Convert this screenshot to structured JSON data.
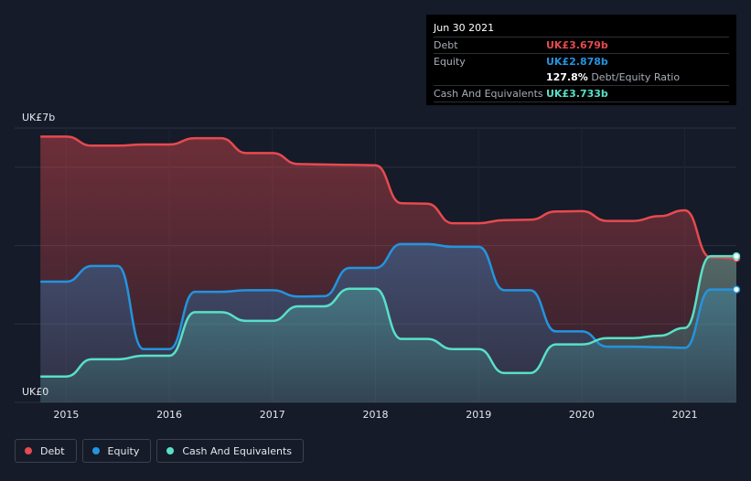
{
  "chart_data": {
    "type": "area",
    "ylim": [
      0,
      7
    ],
    "y_tick_labels": [
      "UK£7b",
      "UK£0"
    ],
    "x_tick_labels": [
      "2015",
      "2016",
      "2017",
      "2018",
      "2019",
      "2020",
      "2021"
    ],
    "x_ticks": [
      2015,
      2016,
      2017,
      2018,
      2019,
      2020,
      2021
    ],
    "xlim": [
      2014.5,
      2021.5
    ],
    "grid": true,
    "colors": {
      "debt": "#e64a4f",
      "equity": "#2394df",
      "cash": "#58e0c8"
    },
    "series": [
      {
        "name": "Debt",
        "key": "debt",
        "x": [
          2014.75,
          2015.0,
          2015.25,
          2015.5,
          2015.75,
          2016.0,
          2016.25,
          2016.5,
          2016.75,
          2017.0,
          2017.25,
          2017.5,
          2017.75,
          2018.0,
          2018.25,
          2018.5,
          2018.75,
          2019.0,
          2019.25,
          2019.5,
          2019.75,
          2020.0,
          2020.25,
          2020.5,
          2020.75,
          2021.0,
          2021.25,
          2021.5
        ],
        "values": [
          6.78,
          6.78,
          6.55,
          6.55,
          6.58,
          6.58,
          6.74,
          6.74,
          6.36,
          6.36,
          6.08,
          6.07,
          6.06,
          6.05,
          5.08,
          5.07,
          4.57,
          4.57,
          4.65,
          4.66,
          4.87,
          4.88,
          4.63,
          4.63,
          4.75,
          4.9,
          3.7,
          3.68
        ]
      },
      {
        "name": "Equity",
        "key": "equity",
        "x": [
          2014.75,
          2015.0,
          2015.25,
          2015.5,
          2015.75,
          2016.0,
          2016.25,
          2016.5,
          2016.75,
          2017.0,
          2017.25,
          2017.5,
          2017.75,
          2018.0,
          2018.25,
          2018.5,
          2018.75,
          2019.0,
          2019.25,
          2019.5,
          2019.75,
          2020.0,
          2020.25,
          2020.5,
          2020.75,
          2021.0,
          2021.25,
          2021.5
        ],
        "values": [
          3.08,
          3.08,
          3.48,
          3.48,
          1.36,
          1.36,
          2.82,
          2.82,
          2.86,
          2.86,
          2.7,
          2.71,
          3.43,
          3.43,
          4.04,
          4.04,
          3.97,
          3.97,
          2.86,
          2.86,
          1.81,
          1.81,
          1.42,
          1.42,
          1.41,
          1.39,
          2.88,
          2.88
        ]
      },
      {
        "name": "Cash And Equivalents",
        "key": "cash",
        "x": [
          2014.75,
          2015.0,
          2015.25,
          2015.5,
          2015.75,
          2016.0,
          2016.25,
          2016.5,
          2016.75,
          2017.0,
          2017.25,
          2017.5,
          2017.75,
          2018.0,
          2018.25,
          2018.5,
          2018.75,
          2019.0,
          2019.25,
          2019.5,
          2019.75,
          2020.0,
          2020.25,
          2020.5,
          2020.75,
          2021.0,
          2021.25,
          2021.5
        ],
        "values": [
          0.66,
          0.66,
          1.1,
          1.1,
          1.19,
          1.19,
          2.3,
          2.3,
          2.08,
          2.08,
          2.45,
          2.45,
          2.9,
          2.9,
          1.62,
          1.62,
          1.36,
          1.36,
          0.75,
          0.75,
          1.48,
          1.48,
          1.64,
          1.64,
          1.7,
          1.9,
          3.73,
          3.73
        ]
      }
    ]
  },
  "tooltip": {
    "date": "Jun 30 2021",
    "debt_label": "Debt",
    "debt_value": "UK£3.679b",
    "equity_label": "Equity",
    "equity_value": "UK£2.878b",
    "ratio_value": "127.8%",
    "ratio_label": "Debt/Equity Ratio",
    "cash_label": "Cash And Equivalents",
    "cash_value": "UK£3.733b"
  },
  "legend": [
    {
      "label": "Debt",
      "color": "#e64a4f"
    },
    {
      "label": "Equity",
      "color": "#2394df"
    },
    {
      "label": "Cash And Equivalents",
      "color": "#58e0c8"
    }
  ]
}
